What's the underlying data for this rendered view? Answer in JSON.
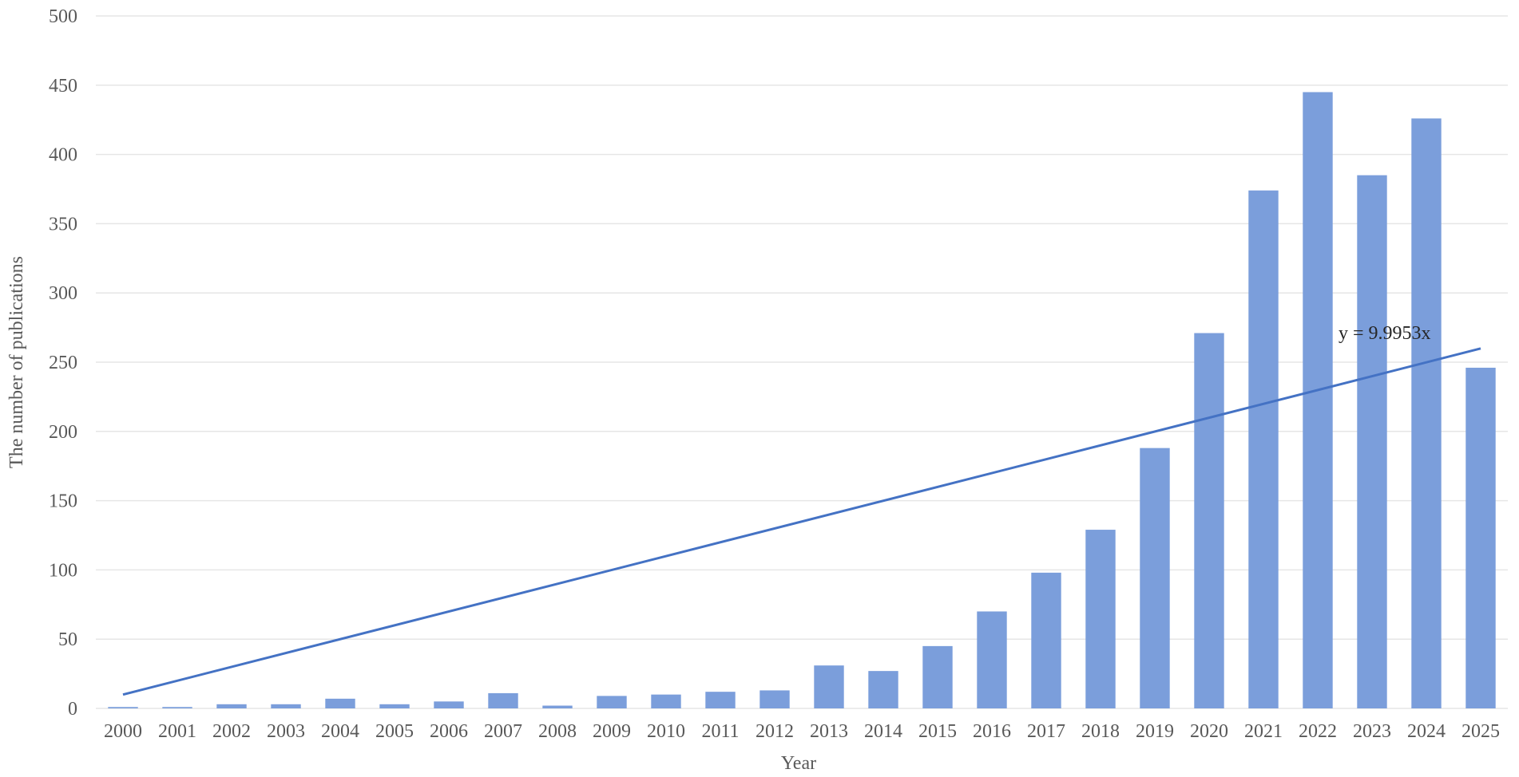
{
  "chart_data": {
    "type": "bar",
    "title": "",
    "xlabel": "Year",
    "ylabel": "The number of publications",
    "ylim": [
      0,
      500
    ],
    "yticks": [
      "0",
      "50",
      "100",
      "150",
      "200",
      "250",
      "300",
      "350",
      "400",
      "450",
      "500"
    ],
    "grid": true,
    "legend": "none",
    "categories": [
      "2000",
      "2001",
      "2002",
      "2003",
      "2004",
      "2005",
      "2006",
      "2007",
      "2008",
      "2009",
      "2010",
      "2011",
      "2012",
      "2013",
      "2014",
      "2015",
      "2016",
      "2017",
      "2018",
      "2019",
      "2020",
      "2021",
      "2022",
      "2023",
      "2024",
      "2025"
    ],
    "series": [
      {
        "values": [
          1,
          1,
          3,
          3,
          7,
          3,
          5,
          11,
          2,
          9,
          10,
          12,
          13,
          31,
          27,
          45,
          70,
          98,
          129,
          188,
          271,
          374,
          445,
          385,
          426,
          246
        ]
      }
    ],
    "trendline": {
      "type": "linear",
      "slope": 9.9953,
      "label": "y = 9.9953x"
    },
    "colors": {
      "bar": "#7b9edb",
      "trendline": "#4472c4",
      "grid": "#e6e6e6",
      "text": "#595959"
    }
  }
}
